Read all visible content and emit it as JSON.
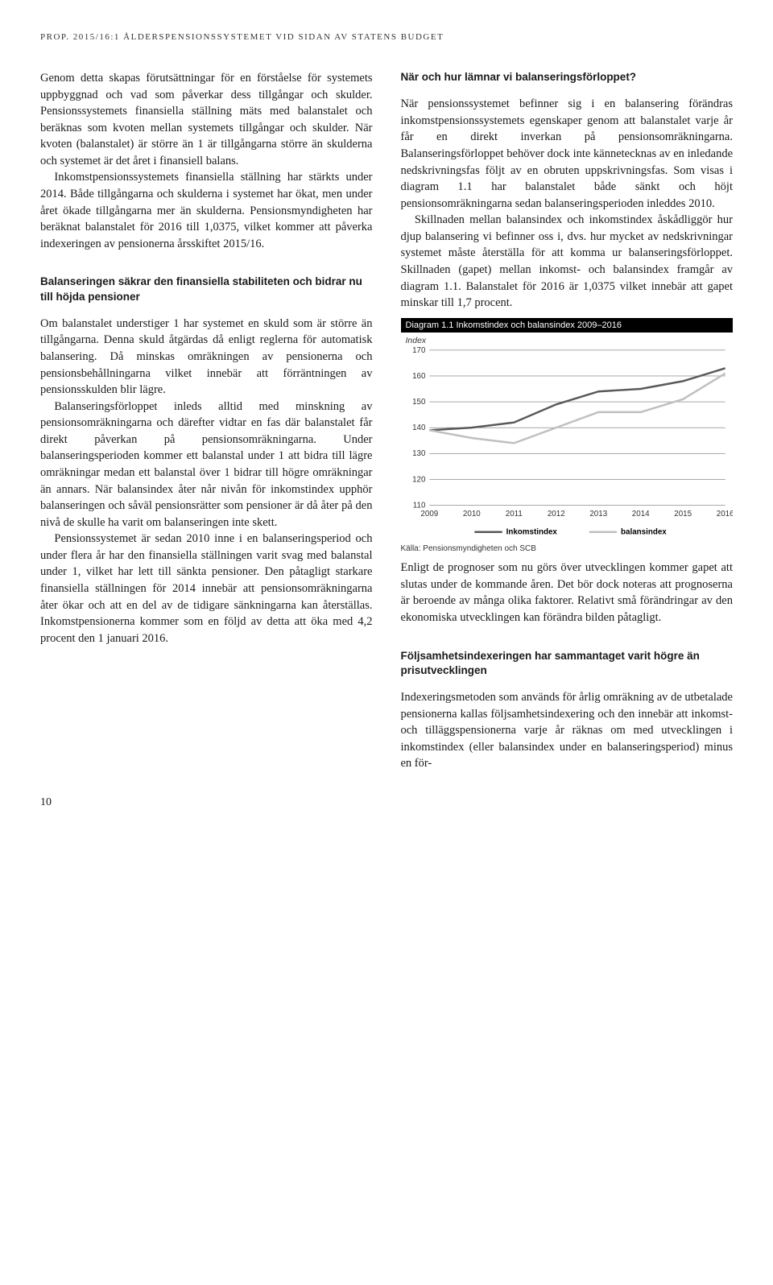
{
  "header": "PROP. 2015/16:1 ÅLDERSPENSIONSSYSTEMET VID SIDAN AV STATENS BUDGET",
  "left": {
    "p1": "Genom detta skapas förutsättningar för en förståelse för systemets uppbyggnad och vad som påverkar dess tillgångar och skulder. Pensionssystemets finansiella ställning mäts med balanstalet och beräknas som kvoten mellan systemets tillgångar och skulder. När kvoten (balanstalet) är större än 1 är tillgångarna större än skulderna och systemet är det året i finansiell balans.",
    "p2": "Inkomstpensionssystemets finansiella ställning har stärkts under 2014. Både tillgångarna och skulderna i systemet har ökat, men under året ökade tillgångarna mer än skulderna. Pensionsmyndigheten har beräknat balanstalet för 2016 till 1,0375, vilket kommer att påverka indexeringen av pensionerna årsskiftet 2015/16.",
    "h1": "Balanseringen säkrar den finansiella stabiliteten och bidrar nu till höjda pensioner",
    "p3": "Om balanstalet understiger 1 har systemet en skuld som är större än tillgångarna. Denna skuld åtgärdas då enligt reglerna för automatisk balansering. Då minskas omräkningen av pensionerna och pensionsbehållningarna vilket innebär att förräntningen av pensionsskulden blir lägre.",
    "p4": "Balanseringsförloppet inleds alltid med minskning av pensionsomräkningarna och därefter vidtar en fas där balanstalet får direkt påverkan på pensionsomräkningarna. Under balanseringsperioden kommer ett balanstal under 1 att bidra till lägre omräkningar medan ett balanstal över 1 bidrar till högre omräkningar än annars. När balansindex åter når nivån för inkomstindex upphör balanseringen och såväl pensionsrätter som pensioner är då åter på den nivå de skulle ha varit om balanseringen inte skett.",
    "p5": "Pensionssystemet är sedan 2010 inne i en balanseringsperiod och under flera år har den finansiella ställningen varit svag med balanstal under 1, vilket har lett till sänkta pensioner. Den påtagligt starkare finansiella ställningen för 2014 innebär att pensionsomräkningarna åter ökar och att en del av de tidigare sänkningarna kan återställas. Inkomstpensionerna kommer som en följd av detta att öka med 4,2 procent den 1 januari 2016."
  },
  "right": {
    "h1": "När och hur lämnar vi balanseringsförloppet?",
    "p1": "När pensionssystemet befinner sig i en balansering förändras inkomstpensionssystemets egenskaper genom att balanstalet varje år får en direkt inverkan på pensionsomräkningarna. Balanseringsförloppet behöver dock inte kännetecknas av en inledande nedskrivningsfas följt av en obruten uppskrivningsfas. Som visas i diagram 1.1 har balanstalet både sänkt och höjt pensionsomräkningarna sedan balanseringsperioden inleddes 2010.",
    "p2": "Skillnaden mellan balansindex och inkomstindex åskådliggör hur djup balansering vi befinner oss i, dvs. hur mycket av nedskrivningar systemet måste återställa för att komma ur balanseringsförloppet. Skillnaden (gapet) mellan inkomst- och balansindex framgår av diagram 1.1. Balanstalet för 2016 är 1,0375 vilket innebär att gapet minskar till 1,7 procent.",
    "p3": "Enligt de prognoser som nu görs över utvecklingen kommer gapet att slutas under de kommande åren. Det bör dock noteras att prognoserna är beroende av många olika faktorer. Relativt små förändringar av den ekonomiska utvecklingen kan förändra bilden påtagligt.",
    "h2": "Följsamhetsindexeringen har sammantaget varit högre än prisutvecklingen",
    "p4": "Indexeringsmetoden som används för årlig omräkning av de utbetalade pensionerna kallas följsamhetsindexering och den innebär att inkomst- och tilläggspensionerna varje år räknas om med utvecklingen i inkomstindex (eller balansindex under en balanseringsperiod) minus en för-"
  },
  "chart": {
    "title": "Diagram 1.1 Inkomstindex och balansindex 2009–2016",
    "ylabel": "Index",
    "source": "Källa: Pensionsmyndigheten och SCB",
    "legend1": "Inkomstindex",
    "legend2": "balansindex",
    "ylim": [
      110,
      170
    ],
    "ytick_step": 10,
    "yticks": [
      110,
      120,
      130,
      140,
      150,
      160,
      170
    ],
    "xlabels": [
      "2009",
      "2010",
      "2011",
      "2012",
      "2013",
      "2014",
      "2015",
      "2016"
    ],
    "series": {
      "inkomstindex": {
        "color": "#595959",
        "width": 2.5,
        "values": [
          139,
          140,
          142,
          149,
          154,
          155,
          158,
          163
        ]
      },
      "balansindex": {
        "color": "#bfbfbf",
        "width": 2.5,
        "values": [
          139,
          136,
          134,
          140,
          146,
          146,
          151,
          161
        ]
      }
    },
    "background_color": "#ffffff",
    "grid_color": "#e6e6e6",
    "text_color": "#333333",
    "label_fontsize": 10
  },
  "page_number": "10"
}
